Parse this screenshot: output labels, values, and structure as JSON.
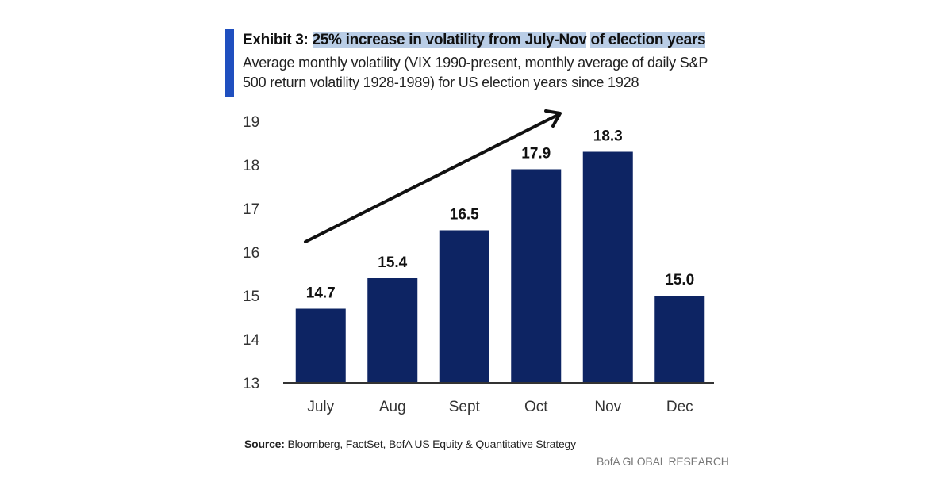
{
  "header": {
    "exhibit_label": "Exhibit 3:",
    "title_part1": "25% increase in volatility from July-Nov",
    "title_part2": "of election years",
    "subtitle": "Average monthly volatility (VIX 1990-present, monthly average of daily S&P 500 return volatility 1928-1989) for US election years since 1928"
  },
  "footer": {
    "source_label": "Source:",
    "source_text": "Bloomberg, FactSet, BofA US Equity & Quantitative Strategy",
    "brand": "BofA GLOBAL RESEARCH"
  },
  "colors": {
    "bar": "#0d2463",
    "accent": "#1f4fbf",
    "highlight": "#b9cde6"
  },
  "chart_data": {
    "type": "bar",
    "title": "Exhibit 3: 25% increase in volatility from July-Nov of election years",
    "subtitle": "Average monthly volatility (VIX 1990-present, monthly average of daily S&P 500 return volatility 1928-1989) for US election years since 1928",
    "categories": [
      "July",
      "Aug",
      "Sept",
      "Oct",
      "Nov",
      "Dec"
    ],
    "values": [
      14.7,
      15.4,
      16.5,
      17.9,
      18.3,
      15.0
    ],
    "data_labels": [
      "14.7",
      "15.4",
      "16.5",
      "17.9",
      "18.3",
      "15.0"
    ],
    "xlabel": "",
    "ylabel": "",
    "ylim": [
      13,
      19
    ],
    "yticks": [
      13,
      14,
      15,
      16,
      17,
      18,
      19
    ],
    "grid": false,
    "legend": "none",
    "annotations": [
      {
        "type": "arrow",
        "description": "upward trend arrow from July to Nov"
      }
    ]
  }
}
